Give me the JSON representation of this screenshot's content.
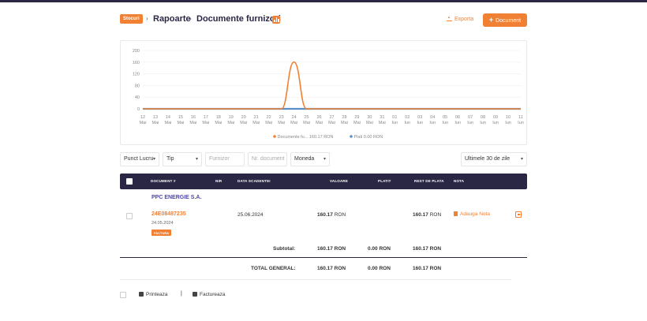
{
  "breadcrumb": {
    "root": "Stocuri",
    "items": [
      "Rapoarte",
      "Documente furnizori"
    ]
  },
  "header_actions": {
    "export_label": "Exporta",
    "new_document_label": "Document"
  },
  "chart_data": {
    "type": "line",
    "x": [
      "12 Mai",
      "13 Mai",
      "14 Mai",
      "15 Mai",
      "16 Mai",
      "17 Mai",
      "18 Mai",
      "19 Mai",
      "20 Mai",
      "21 Mai",
      "22 Mai",
      "23 Mai",
      "24 Mai",
      "25 Mai",
      "26 Mai",
      "27 Mai",
      "28 Mai",
      "29 Mai",
      "30 Mai",
      "31 Mai",
      "01 Iun",
      "02 Iun",
      "03 Iun",
      "04 Iun",
      "05 Iun",
      "06 Iun",
      "07 Iun",
      "08 Iun",
      "09 Iun",
      "10 Iun",
      "11 Iun"
    ],
    "x_labels_top": [
      "12",
      "13",
      "14",
      "15",
      "16",
      "17",
      "18",
      "19",
      "20",
      "21",
      "22",
      "23",
      "24",
      "25",
      "26",
      "27",
      "28",
      "29",
      "30",
      "31",
      "01",
      "02",
      "03",
      "04",
      "05",
      "06",
      "07",
      "08",
      "09",
      "10",
      "11"
    ],
    "x_labels_bottom": [
      "Mai",
      "Mai",
      "Mai",
      "Mai",
      "Mai",
      "Mai",
      "Mai",
      "Mai",
      "Mai",
      "Mai",
      "Mai",
      "Mai",
      "Mai",
      "Mai",
      "Mai",
      "Mai",
      "Mai",
      "Mai",
      "Mai",
      "Mai",
      "Iun",
      "Iun",
      "Iun",
      "Iun",
      "Iun",
      "Iun",
      "Iun",
      "Iun",
      "Iun",
      "Iun",
      "Iun"
    ],
    "y_ticks": [
      "200",
      "160",
      "120",
      "80",
      "40",
      "0"
    ],
    "ylim": [
      0,
      200
    ],
    "series": [
      {
        "name": "Documente fu... 160.17 RON",
        "color": "#f08033",
        "values": [
          0,
          0,
          0,
          0,
          0,
          0,
          0,
          0,
          0,
          0,
          0,
          0,
          160.17,
          0,
          0,
          0,
          0,
          0,
          0,
          0,
          0,
          0,
          0,
          0,
          0,
          0,
          0,
          0,
          0,
          0,
          0
        ]
      },
      {
        "name": "Plati 0.00 RON",
        "color": "#5b8fc7",
        "values": [
          0,
          0,
          0,
          0,
          0,
          0,
          0,
          0,
          0,
          0,
          0,
          0,
          0,
          0,
          0,
          0,
          0,
          0,
          0,
          0,
          0,
          0,
          0,
          0,
          0,
          0,
          0,
          0,
          0,
          0,
          0
        ]
      }
    ]
  },
  "filters": {
    "location": "Punct Lucru",
    "type": "Tip",
    "supplier_placeholder": "Furnizor",
    "doc_number_placeholder": "Nr. document",
    "currency": "Moneda",
    "period": "Ultimele 30 de zile"
  },
  "table": {
    "columns": {
      "document": "DOCUMENT #",
      "nir": "NIR",
      "due_date": "DATA SCADENTEI",
      "value": "VALOARE",
      "paid": "PLATIT",
      "remaining": "REST DE PLATA",
      "note": "NOTA"
    },
    "supplier_name": "PPC ENERGIE S.A.",
    "row": {
      "document_number": "24E08487235",
      "document_date": "24.05.2024",
      "document_type": "FACTURA",
      "due_date": "25.06.2024",
      "value": "160.17",
      "remaining": "160.17",
      "currency": "RON",
      "note_action": "Adauga Nota"
    },
    "subtotal": {
      "label": "Subtotal:",
      "value": "160.17 RON",
      "paid": "0.00 RON",
      "remaining": "160.17 RON"
    },
    "total": {
      "label": "TOTAL GENERAL:",
      "value": "160.17 RON",
      "paid": "0.00 RON",
      "remaining": "160.17 RON"
    }
  },
  "footer": {
    "print_label": "Printeaza",
    "separator": "|",
    "invoice_label": "Factureaza"
  }
}
